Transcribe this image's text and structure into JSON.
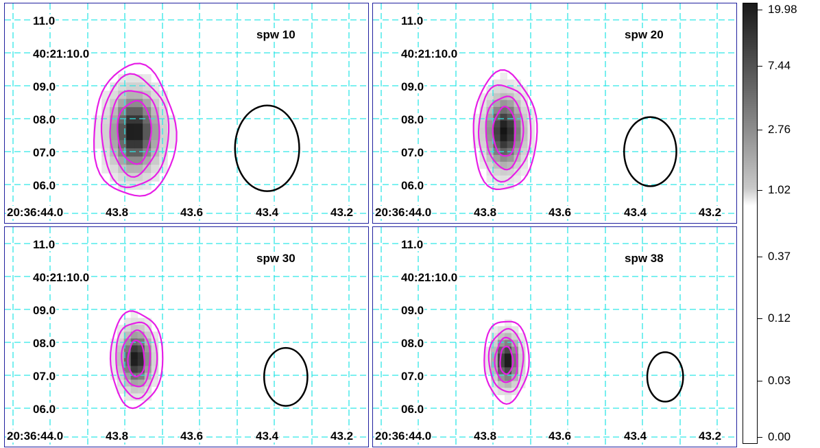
{
  "chart_data": {
    "type": "heatmap",
    "panels": [
      {
        "title": "spw 10",
        "y_ticks": [
          "11.0",
          "40:21:10.0",
          "09.0",
          "08.0",
          "07.0",
          "06.0"
        ],
        "x_ticks": [
          "20:36:44.0",
          "43.8",
          "43.6",
          "43.4",
          "43.2"
        ],
        "source_peak": {
          "ra_offset_s": -0.325,
          "dec_arcsec": 7.6
        },
        "contour_extents": [
          {
            "ra_halfwidth_s": 0.11,
            "dec_halfwidth_arcsec": 2.0
          },
          {
            "ra_halfwidth_s": 0.09,
            "dec_halfwidth_arcsec": 1.7
          },
          {
            "ra_halfwidth_s": 0.066,
            "dec_halfwidth_arcsec": 1.3
          },
          {
            "ra_halfwidth_s": 0.045,
            "dec_halfwidth_arcsec": 0.95
          }
        ],
        "beam": {
          "ra_center_s": -0.68,
          "dec_center_arcsec": 7.1,
          "ra_halfwidth_s": 0.086,
          "dec_halfwidth_arcsec": 1.3
        }
      },
      {
        "title": "spw 20",
        "y_ticks": [
          "11.0",
          "40:21:10.0",
          "09.0",
          "08.0",
          "07.0",
          "06.0"
        ],
        "x_ticks": [
          "20:36:44.0",
          "43.8",
          "43.6",
          "43.4",
          "43.2"
        ],
        "source_peak": {
          "ra_offset_s": -0.33,
          "dec_arcsec": 7.6
        },
        "contour_extents": [
          {
            "ra_halfwidth_s": 0.085,
            "dec_halfwidth_arcsec": 1.8
          },
          {
            "ra_halfwidth_s": 0.07,
            "dec_halfwidth_arcsec": 1.45
          },
          {
            "ra_halfwidth_s": 0.05,
            "dec_halfwidth_arcsec": 1.1
          },
          {
            "ra_halfwidth_s": 0.03,
            "dec_halfwidth_arcsec": 0.75
          }
        ],
        "beam": {
          "ra_center_s": -0.72,
          "dec_center_arcsec": 7.0,
          "ra_halfwidth_s": 0.07,
          "dec_halfwidth_arcsec": 1.05
        }
      },
      {
        "title": "spw 30",
        "y_ticks": [
          "11.0",
          "40:21:10.0",
          "09.0",
          "08.0",
          "07.0",
          "06.0"
        ],
        "x_ticks": [
          "20:36:44.0",
          "43.8",
          "43.6",
          "43.4",
          "43.2"
        ],
        "source_peak": {
          "ra_offset_s": -0.33,
          "dec_arcsec": 7.5
        },
        "contour_extents": [
          {
            "ra_halfwidth_s": 0.07,
            "dec_halfwidth_arcsec": 1.45
          },
          {
            "ra_halfwidth_s": 0.055,
            "dec_halfwidth_arcsec": 1.15
          },
          {
            "ra_halfwidth_s": 0.038,
            "dec_halfwidth_arcsec": 0.85
          },
          {
            "ra_halfwidth_s": 0.022,
            "dec_halfwidth_arcsec": 0.55
          }
        ],
        "beam": {
          "ra_center_s": -0.73,
          "dec_center_arcsec": 6.95,
          "ra_halfwidth_s": 0.058,
          "dec_halfwidth_arcsec": 0.88
        }
      },
      {
        "title": "spw 38",
        "y_ticks": [
          "11.0",
          "40:21:10.0",
          "09.0",
          "08.0",
          "07.0",
          "06.0"
        ],
        "x_ticks": [
          "20:36:44.0",
          "43.8",
          "43.6",
          "43.4",
          "43.2"
        ],
        "source_peak": {
          "ra_offset_s": -0.335,
          "dec_arcsec": 7.45
        },
        "contour_extents": [
          {
            "ra_halfwidth_s": 0.06,
            "dec_halfwidth_arcsec": 1.25
          },
          {
            "ra_halfwidth_s": 0.046,
            "dec_halfwidth_arcsec": 0.95
          },
          {
            "ra_halfwidth_s": 0.03,
            "dec_halfwidth_arcsec": 0.68
          },
          {
            "ra_halfwidth_s": 0.017,
            "dec_halfwidth_arcsec": 0.42
          }
        ],
        "beam": {
          "ra_center_s": -0.76,
          "dec_center_arcsec": 6.95,
          "ra_halfwidth_s": 0.048,
          "dec_halfwidth_arcsec": 0.75
        }
      }
    ],
    "colorbar": {
      "labels": [
        "19.98",
        "7.44",
        "2.76",
        "1.02",
        "0.37",
        "0.12",
        "0.03",
        "0.00"
      ],
      "scale": "log-stretch"
    },
    "colors": {
      "grid": "#2ee6e6",
      "contour": "#e61ee6",
      "beam": "#000000",
      "frame": "#1e1e9e"
    }
  }
}
